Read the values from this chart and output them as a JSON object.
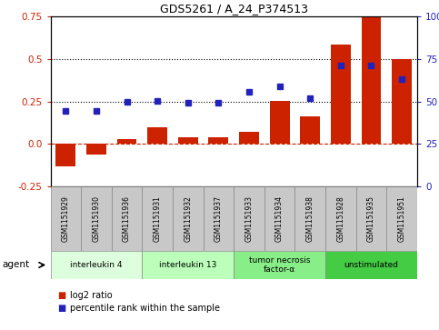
{
  "title": "GDS5261 / A_24_P374513",
  "samples": [
    "GSM1151929",
    "GSM1151930",
    "GSM1151936",
    "GSM1151931",
    "GSM1151932",
    "GSM1151937",
    "GSM1151933",
    "GSM1151934",
    "GSM1151938",
    "GSM1151928",
    "GSM1151935",
    "GSM1151951"
  ],
  "log2_ratio": [
    -0.13,
    -0.06,
    0.03,
    0.1,
    0.04,
    0.04,
    0.07,
    0.255,
    0.16,
    0.585,
    0.75,
    0.5
  ],
  "percentile_left": [
    0.195,
    0.195,
    0.25,
    0.255,
    0.245,
    0.245,
    0.305,
    0.34,
    0.27,
    0.46,
    0.46,
    0.38
  ],
  "ylim_left": [
    -0.25,
    0.75
  ],
  "ylim_right": [
    0,
    100
  ],
  "yticks_left": [
    -0.25,
    0.0,
    0.25,
    0.5,
    0.75
  ],
  "yticks_right": [
    0,
    25,
    50,
    75,
    100
  ],
  "hlines": [
    0.25,
    0.5
  ],
  "bar_color": "#cc2200",
  "dot_color": "#2222bb",
  "zero_line_color": "#cc2200",
  "agent_groups": [
    {
      "label": "interleukin 4",
      "start": 0,
      "end": 3,
      "color": "#ddffdd"
    },
    {
      "label": "interleukin 13",
      "start": 3,
      "end": 6,
      "color": "#bbffbb"
    },
    {
      "label": "tumor necrosis\nfactor-α",
      "start": 6,
      "end": 9,
      "color": "#88ee88"
    },
    {
      "label": "unstimulated",
      "start": 9,
      "end": 12,
      "color": "#44cc44"
    }
  ],
  "legend_label_ratio": "log2 ratio",
  "legend_label_pct": "percentile rank within the sample",
  "bar_width": 0.65,
  "sample_box_color": "#c8c8c8",
  "agent_label": "agent"
}
